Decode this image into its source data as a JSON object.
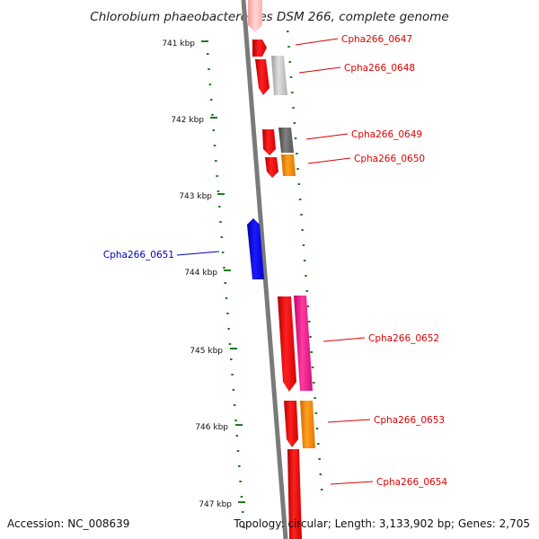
{
  "title": "Chlorobium phaeobacteroides DSM 266, complete genome",
  "accession": "Accession: NC_008639",
  "topology": "Topology: circular; Length: 3,133,902 bp; Genes: 2,705",
  "colors": {
    "forward_gene_label": "#dd0000",
    "reverse_gene_label": "#0000bb",
    "tick_mark": "#1e7a1e",
    "backbone": "#7a7a7a"
  },
  "ticks": [
    {
      "label": "741 kbp"
    },
    {
      "label": "742 kbp"
    },
    {
      "label": "743 kbp"
    },
    {
      "label": "744 kbp"
    },
    {
      "label": "745 kbp"
    },
    {
      "label": "746 kbp"
    },
    {
      "label": "747 kbp"
    }
  ],
  "genes": [
    {
      "label": "Cpha266_0647",
      "color": "#ff1a1a"
    },
    {
      "label": "Cpha266_0648",
      "color": "#c8c8c8"
    },
    {
      "label": "Cpha266_0649",
      "color": "#666666"
    },
    {
      "label": "Cpha266_0650",
      "color": "#ff8c00"
    },
    {
      "label": "Cpha266_0651",
      "color": "#0000ee"
    },
    {
      "label": "Cpha266_0652",
      "color": "#ff1a8c"
    },
    {
      "label": "Cpha266_0653",
      "color": "#ff8c00"
    },
    {
      "label": "Cpha266_0654",
      "color": "#ff1a1a"
    }
  ]
}
